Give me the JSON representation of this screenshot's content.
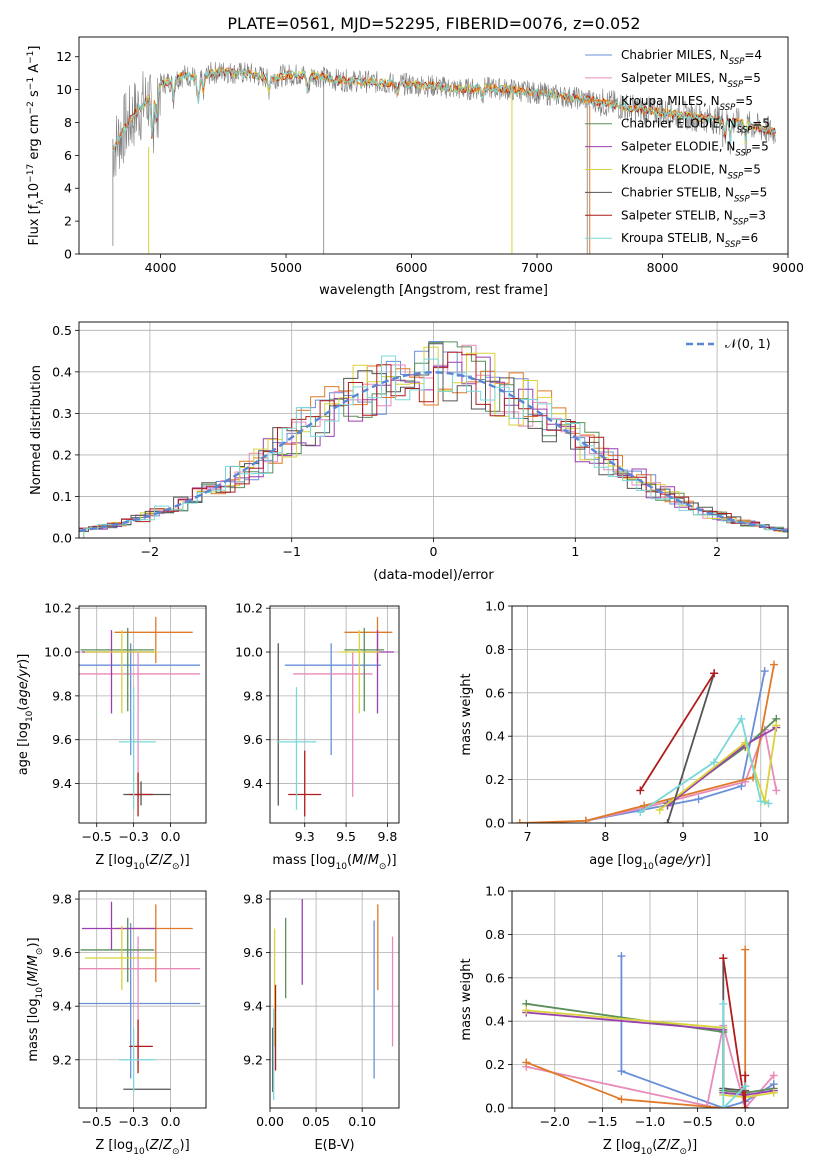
{
  "figure_title": "PLATE=0561, MJD=52295, FIBERID=0076, z=0.052",
  "colors": {
    "Chabrier MILES": "#6a8fd8",
    "Salpeter MILES": "#e88aba",
    "Kroupa MILES": "#e07a2a",
    "Chabrier ELODIE": "#5a8f5a",
    "Salpeter ELODIE": "#9a3fb0",
    "Kroupa ELODIE": "#d9d23a",
    "Chabrier STELIB": "#555555",
    "Salpeter STELIB": "#b01c1c",
    "Kroupa STELIB": "#7ad8da",
    "spectrum": "#808080"
  },
  "chart_data": [
    {
      "id": "spectrum",
      "type": "line",
      "title": "PLATE=0561, MJD=52295, FIBERID=0076, z=0.052",
      "xlabel": "wavelength [Angstrom, rest frame]",
      "ylabel": "Flux [f_λ 10^-17 erg cm^-2 s^-1 A^-1]",
      "xlim": [
        3350,
        9000
      ],
      "ylim": [
        0,
        13.2
      ],
      "xticks": [
        4000,
        5000,
        6000,
        7000,
        8000,
        9000
      ],
      "yticks": [
        0,
        2,
        4,
        6,
        8,
        10,
        12
      ],
      "grid": false,
      "legend_position": "top-right",
      "legend": [
        {
          "label": "Chabrier MILES, N",
          "sub": "SSP",
          "tail": "=4"
        },
        {
          "label": "Salpeter MILES, N",
          "sub": "SSP",
          "tail": "=5"
        },
        {
          "label": "Kroupa MILES, N",
          "sub": "SSP",
          "tail": "=5"
        },
        {
          "label": "Chabrier ELODIE, N",
          "sub": "SSP",
          "tail": "=5"
        },
        {
          "label": "Salpeter ELODIE, N",
          "sub": "SSP",
          "tail": "=5"
        },
        {
          "label": "Kroupa ELODIE, N",
          "sub": "SSP",
          "tail": "=5"
        },
        {
          "label": "Chabrier STELIB, N",
          "sub": "SSP",
          "tail": "=5"
        },
        {
          "label": "Salpeter STELIB, N",
          "sub": "SSP",
          "tail": "=3"
        },
        {
          "label": "Kroupa STELIB, N",
          "sub": "SSP",
          "tail": "=6"
        }
      ],
      "continuum": {
        "x": [
          3620,
          3700,
          3800,
          3900,
          4000,
          4100,
          4200,
          4300,
          4400,
          4500,
          4600,
          4700,
          4800,
          4900,
          5000,
          5200,
          5400,
          5600,
          5800,
          6000,
          6200,
          6400,
          6600,
          6800,
          7000,
          7200,
          7400,
          7600,
          7800,
          8000,
          8200,
          8400,
          8600,
          8800,
          8900
        ],
        "y": [
          6.3,
          7.5,
          8.6,
          9.4,
          10.3,
          10.6,
          10.9,
          10.7,
          11.0,
          11.1,
          11.0,
          11.0,
          10.8,
          10.7,
          10.9,
          10.9,
          10.6,
          10.5,
          10.4,
          10.3,
          10.2,
          10.0,
          10.1,
          10.0,
          9.8,
          9.6,
          9.4,
          9.1,
          8.8,
          8.6,
          8.4,
          8.2,
          8.0,
          7.6,
          7.4
        ]
      }
    },
    {
      "id": "residuals",
      "type": "histogram",
      "xlabel": "(data-model)/error",
      "ylabel": "Normed distribution",
      "xlim": [
        -2.5,
        2.5
      ],
      "ylim": [
        0,
        0.52
      ],
      "xticks": [
        -2,
        -1,
        0,
        1,
        2
      ],
      "yticks": [
        0.0,
        0.1,
        0.2,
        0.3,
        0.4,
        0.5
      ],
      "grid": true,
      "legend_position": "top-right",
      "legend": [
        {
          "label": "𝒩(0, 1)"
        }
      ],
      "bin_width": 0.1,
      "reference_curve": "normal pdf, mean 0, sigma 1"
    },
    {
      "id": "age_vs_Z",
      "type": "errorbar",
      "xlabel": "Z [log10(Z/Z⊙)]",
      "ylabel": "age [log10(age/yr)]",
      "xlim": [
        -0.62,
        0.24
      ],
      "ylim": [
        9.22,
        10.21
      ],
      "xticks": [
        -0.5,
        -0.25,
        0.0
      ],
      "yticks": [
        9.4,
        9.6,
        9.8,
        10.0,
        10.2
      ],
      "grid": true,
      "points": [
        {
          "model": "Chabrier MILES",
          "x": -0.27,
          "xerr": [
            0.6,
            0.47
          ],
          "y": 9.94,
          "yerr": [
            0.41,
            0.1
          ]
        },
        {
          "model": "Salpeter MILES",
          "x": -0.22,
          "xerr": [
            0.44,
            0.42
          ],
          "y": 9.9,
          "yerr": [
            0.56,
            0.1
          ]
        },
        {
          "model": "Kroupa MILES",
          "x": -0.1,
          "xerr": [
            0.28,
            0.25
          ],
          "y": 10.09,
          "yerr": [
            0.14,
            0.07
          ]
        },
        {
          "model": "Chabrier ELODIE",
          "x": -0.29,
          "xerr": [
            0.32,
            0.18
          ],
          "y": 10.01,
          "yerr": [
            0.28,
            0.1
          ]
        },
        {
          "model": "Salpeter ELODIE",
          "x": -0.4,
          "xerr": [
            0.2,
            0.3
          ],
          "y": 10.0,
          "yerr": [
            0.28,
            0.1
          ]
        },
        {
          "model": "Kroupa ELODIE",
          "x": -0.33,
          "xerr": [
            0.25,
            0.24
          ],
          "y": 10.0,
          "yerr": [
            0.28,
            0.1
          ]
        },
        {
          "model": "Chabrier STELIB",
          "x": -0.2,
          "xerr": [
            0.12,
            0.2
          ],
          "y": 9.35,
          "yerr": [
            0.05,
            0.06
          ]
        },
        {
          "model": "Salpeter STELIB",
          "x": -0.22,
          "xerr": [
            0.06,
            0.1
          ],
          "y": 9.35,
          "yerr": [
            0.1,
            0.1
          ]
        },
        {
          "model": "Kroupa STELIB",
          "x": -0.25,
          "xerr": [
            0.1,
            0.15
          ],
          "y": 9.59,
          "yerr": [
            0.31,
            0.25
          ]
        }
      ]
    },
    {
      "id": "age_vs_mass",
      "type": "errorbar",
      "xlabel": "mass [log10(M/M⊙)]",
      "ylabel": "",
      "xlim": [
        9.04,
        9.82
      ],
      "ylim": [
        9.22,
        10.21
      ],
      "xticks": [
        9.25,
        9.5,
        9.75
      ],
      "yticks": [
        9.4,
        9.6,
        9.8,
        10.0,
        10.2
      ],
      "grid": true,
      "points": [
        {
          "model": "Chabrier MILES",
          "x": 9.41,
          "xerr": [
            0.28,
            0.3
          ],
          "y": 9.94,
          "yerr": [
            0.41,
            0.1
          ]
        },
        {
          "model": "Salpeter MILES",
          "x": 9.54,
          "xerr": [
            0.36,
            0.12
          ],
          "y": 9.9,
          "yerr": [
            0.56,
            0.1
          ]
        },
        {
          "model": "Kroupa MILES",
          "x": 9.69,
          "xerr": [
            0.2,
            0.09
          ],
          "y": 10.09,
          "yerr": [
            0.14,
            0.07
          ]
        },
        {
          "model": "Chabrier ELODIE",
          "x": 9.61,
          "xerr": [
            0.12,
            0.12
          ],
          "y": 10.01,
          "yerr": [
            0.28,
            0.1
          ]
        },
        {
          "model": "Salpeter ELODIE",
          "x": 9.69,
          "xerr": [
            0.08,
            0.1
          ],
          "y": 10.0,
          "yerr": [
            0.28,
            0.1
          ]
        },
        {
          "model": "Kroupa ELODIE",
          "x": 9.58,
          "xerr": [
            0.12,
            0.12
          ],
          "y": 10.0,
          "yerr": [
            0.28,
            0.1
          ]
        },
        {
          "model": "Chabrier STELIB",
          "x": 9.09,
          "xerr": [
            0.0,
            0.0
          ],
          "y": 9.67,
          "yerr": [
            0.37,
            0.37
          ]
        },
        {
          "model": "Salpeter STELIB",
          "x": 9.25,
          "xerr": [
            0.1,
            0.1
          ],
          "y": 9.35,
          "yerr": [
            0.1,
            0.2
          ]
        },
        {
          "model": "Kroupa STELIB",
          "x": 9.2,
          "xerr": [
            0.12,
            0.12
          ],
          "y": 9.59,
          "yerr": [
            0.31,
            0.25
          ]
        }
      ]
    },
    {
      "id": "mass_weight_vs_age",
      "type": "line",
      "xlabel": "age [log10(age/yr)]",
      "ylabel": "mass weight",
      "xlim": [
        6.8,
        10.35
      ],
      "ylim": [
        0,
        1.0
      ],
      "xticks": [
        7,
        8,
        9,
        10
      ],
      "yticks": [
        0.0,
        0.2,
        0.4,
        0.6,
        0.8,
        1.0
      ],
      "grid": true,
      "series": [
        {
          "model": "Chabrier MILES",
          "x": [
            7.75,
            9.2,
            9.75,
            10.05
          ],
          "y": [
            0.01,
            0.11,
            0.17,
            0.7
          ]
        },
        {
          "model": "Salpeter MILES",
          "x": [
            7.75,
            8.5,
            9.8,
            10.05,
            10.2
          ],
          "y": [
            0.01,
            0.07,
            0.19,
            0.43,
            0.15
          ]
        },
        {
          "model": "Kroupa MILES",
          "x": [
            6.9,
            7.75,
            8.5,
            9.9,
            10.17
          ],
          "y": [
            0.0,
            0.01,
            0.08,
            0.21,
            0.73
          ]
        },
        {
          "model": "Chabrier ELODIE",
          "x": [
            8.8,
            9.8,
            10.2
          ],
          "y": [
            0.09,
            0.35,
            0.48
          ]
        },
        {
          "model": "Salpeter ELODIE",
          "x": [
            8.8,
            9.8,
            10.2
          ],
          "y": [
            0.08,
            0.36,
            0.44
          ]
        },
        {
          "model": "Kroupa ELODIE",
          "x": [
            8.7,
            9.8,
            10.05,
            10.2
          ],
          "y": [
            0.06,
            0.37,
            0.1,
            0.45
          ]
        },
        {
          "model": "Chabrier STELIB",
          "x": [
            8.8,
            9.4
          ],
          "y": [
            0.0,
            0.69
          ]
        },
        {
          "model": "Salpeter STELIB",
          "x": [
            8.45,
            9.4
          ],
          "y": [
            0.15,
            0.69
          ]
        },
        {
          "model": "Kroupa STELIB",
          "x": [
            8.45,
            9.4,
            9.75,
            10.0,
            10.1
          ],
          "y": [
            0.05,
            0.28,
            0.48,
            0.1,
            0.09
          ]
        }
      ]
    },
    {
      "id": "mass_vs_Z",
      "type": "errorbar",
      "xlabel": "Z [log10(Z/Z⊙)]",
      "ylabel": "mass [log10(M/M⊙)]",
      "xlim": [
        -0.62,
        0.24
      ],
      "ylim": [
        9.02,
        9.83
      ],
      "xticks": [
        -0.5,
        -0.25,
        0.0
      ],
      "yticks": [
        9.2,
        9.4,
        9.6,
        9.8
      ],
      "grid": true,
      "points": [
        {
          "model": "Chabrier MILES",
          "x": -0.27,
          "xerr": [
            0.6,
            0.47
          ],
          "y": 9.41,
          "yerr": [
            0.28,
            0.3
          ]
        },
        {
          "model": "Salpeter MILES",
          "x": -0.22,
          "xerr": [
            0.44,
            0.42
          ],
          "y": 9.54,
          "yerr": [
            0.36,
            0.12
          ]
        },
        {
          "model": "Kroupa MILES",
          "x": -0.1,
          "xerr": [
            0.28,
            0.25
          ],
          "y": 9.69,
          "yerr": [
            0.2,
            0.09
          ]
        },
        {
          "model": "Chabrier ELODIE",
          "x": -0.29,
          "xerr": [
            0.32,
            0.18
          ],
          "y": 9.61,
          "yerr": [
            0.12,
            0.12
          ]
        },
        {
          "model": "Salpeter ELODIE",
          "x": -0.4,
          "xerr": [
            0.2,
            0.3
          ],
          "y": 9.69,
          "yerr": [
            0.08,
            0.1
          ]
        },
        {
          "model": "Kroupa ELODIE",
          "x": -0.33,
          "xerr": [
            0.25,
            0.24
          ],
          "y": 9.58,
          "yerr": [
            0.12,
            0.12
          ]
        },
        {
          "model": "Chabrier STELIB",
          "x": -0.2,
          "xerr": [
            0.12,
            0.2
          ],
          "y": 9.09,
          "yerr": [
            0.0,
            0.0
          ]
        },
        {
          "model": "Salpeter STELIB",
          "x": -0.22,
          "xerr": [
            0.06,
            0.1
          ],
          "y": 9.25,
          "yerr": [
            0.1,
            0.1
          ]
        },
        {
          "model": "Kroupa STELIB",
          "x": -0.25,
          "xerr": [
            0.1,
            0.15
          ],
          "y": 9.2,
          "yerr": [
            0.12,
            0.12
          ]
        }
      ]
    },
    {
      "id": "mass_vs_ebv",
      "type": "errorbar",
      "xlabel": "E(B-V)",
      "ylabel": "",
      "xlim": [
        0.0,
        0.14
      ],
      "ylim": [
        9.02,
        9.83
      ],
      "xticks": [
        0.0,
        0.05,
        0.1
      ],
      "yticks": [
        9.2,
        9.4,
        9.6,
        9.8
      ],
      "grid": true,
      "points": [
        {
          "model": "Chabrier MILES",
          "x": 0.113,
          "xerr": [
            0,
            0
          ],
          "y": 9.42,
          "yerr": [
            0.29,
            0.3
          ]
        },
        {
          "model": "Salpeter MILES",
          "x": 0.133,
          "xerr": [
            0,
            0
          ],
          "y": 9.45,
          "yerr": [
            0.2,
            0.21
          ]
        },
        {
          "model": "Kroupa MILES",
          "x": 0.117,
          "xerr": [
            0,
            0
          ],
          "y": 9.62,
          "yerr": [
            0.16,
            0.16
          ]
        },
        {
          "model": "Chabrier ELODIE",
          "x": 0.017,
          "xerr": [
            0,
            0
          ],
          "y": 9.58,
          "yerr": [
            0.15,
            0.15
          ]
        },
        {
          "model": "Salpeter ELODIE",
          "x": 0.035,
          "xerr": [
            0,
            0
          ],
          "y": 9.64,
          "yerr": [
            0.16,
            0.16
          ]
        },
        {
          "model": "Kroupa ELODIE",
          "x": 0.005,
          "xerr": [
            0,
            0
          ],
          "y": 9.47,
          "yerr": [
            0.22,
            0.22
          ]
        },
        {
          "model": "Chabrier STELIB",
          "x": 0.003,
          "xerr": [
            0,
            0
          ],
          "y": 9.2,
          "yerr": [
            0.12,
            0.12
          ]
        },
        {
          "model": "Salpeter STELIB",
          "x": 0.006,
          "xerr": [
            0,
            0
          ],
          "y": 9.32,
          "yerr": [
            0.16,
            0.16
          ]
        },
        {
          "model": "Kroupa STELIB",
          "x": 0.004,
          "xerr": [
            0,
            0
          ],
          "y": 9.22,
          "yerr": [
            0.17,
            0.17
          ]
        }
      ]
    },
    {
      "id": "mass_weight_vs_Z",
      "type": "line",
      "xlabel": "Z [log10(Z/Z⊙)]",
      "ylabel": "mass weight",
      "xlim": [
        -2.45,
        0.45
      ],
      "ylim": [
        0,
        1.0
      ],
      "xticks": [
        -2.0,
        -1.5,
        -1.0,
        -0.5,
        0.0
      ],
      "yticks": [
        0.0,
        0.2,
        0.4,
        0.6,
        0.8,
        1.0
      ],
      "grid": true,
      "series": [
        {
          "model": "Chabrier MILES",
          "x": [
            -1.3,
            -1.3,
            -0.23,
            0.0,
            0.3
          ],
          "y": [
            0.7,
            0.17,
            0.0,
            0.03,
            0.11
          ]
        },
        {
          "model": "Salpeter MILES",
          "x": [
            -2.3,
            -0.4,
            -0.23,
            0.0,
            0.3
          ],
          "y": [
            0.19,
            0.01,
            0.38,
            0.0,
            0.15
          ]
        },
        {
          "model": "Kroupa MILES",
          "x": [
            -2.3,
            -1.3,
            -0.23,
            0.0,
            0.0
          ],
          "y": [
            0.21,
            0.04,
            0.0,
            0.0,
            0.73
          ]
        },
        {
          "model": "Chabrier ELODIE",
          "x": [
            -2.3,
            -0.23,
            -0.23,
            0.0,
            0.3
          ],
          "y": [
            0.48,
            0.35,
            0.08,
            0.07,
            0.09
          ]
        },
        {
          "model": "Salpeter ELODIE",
          "x": [
            -2.3,
            -0.23,
            -0.23,
            0.0,
            0.3
          ],
          "y": [
            0.44,
            0.36,
            0.07,
            0.06,
            0.08
          ]
        },
        {
          "model": "Kroupa ELODIE",
          "x": [
            -2.3,
            -0.23,
            -0.23,
            0.0,
            0.3
          ],
          "y": [
            0.45,
            0.37,
            0.06,
            0.05,
            0.07
          ]
        },
        {
          "model": "Chabrier STELIB",
          "x": [
            -0.23,
            -0.23,
            0.0,
            0.0
          ],
          "y": [
            0.69,
            0.09,
            0.08,
            0.1
          ]
        },
        {
          "model": "Salpeter STELIB",
          "x": [
            -0.23,
            0.0,
            0.0
          ],
          "y": [
            0.69,
            0.0,
            0.15
          ]
        },
        {
          "model": "Kroupa STELIB",
          "x": [
            -0.23,
            -0.23,
            0.0
          ],
          "y": [
            0.48,
            0.0,
            0.1
          ]
        }
      ]
    }
  ]
}
